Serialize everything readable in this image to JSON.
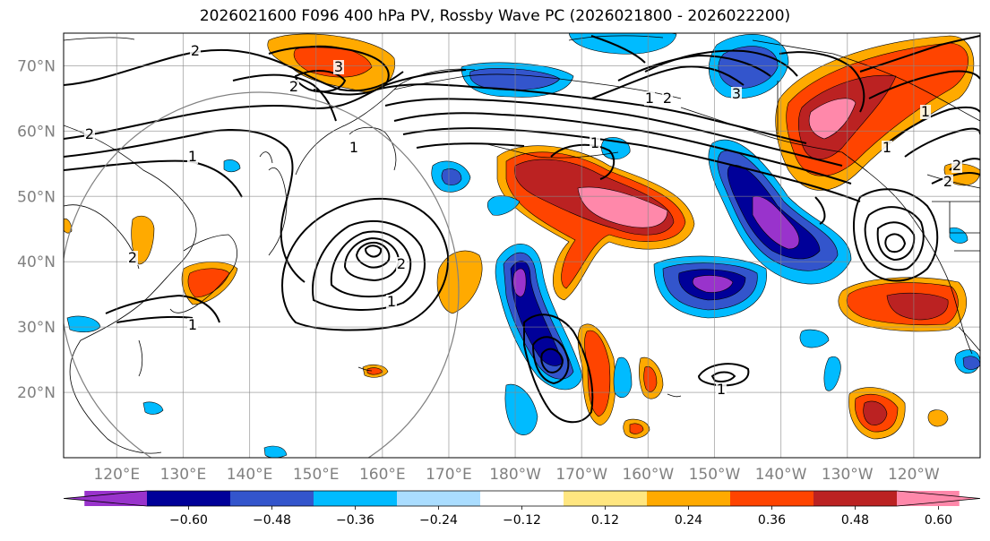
{
  "title": "2026021600 F096 400 hPa PV, Rossby Wave PC (2026021800 - 2026022200)",
  "map": {
    "lon_range": [
      112,
      250
    ],
    "lat_range": [
      10,
      75
    ],
    "lat_ticks": [
      {
        "value": 70,
        "label": "70°N"
      },
      {
        "value": 60,
        "label": "60°N"
      },
      {
        "value": 50,
        "label": "50°N"
      },
      {
        "value": 40,
        "label": "40°N"
      },
      {
        "value": 30,
        "label": "30°N"
      },
      {
        "value": 20,
        "label": "20°N"
      }
    ],
    "lon_ticks": [
      {
        "value": 120,
        "label": "120°E"
      },
      {
        "value": 130,
        "label": "130°E"
      },
      {
        "value": 140,
        "label": "140°E"
      },
      {
        "value": 150,
        "label": "150°E"
      },
      {
        "value": 160,
        "label": "160°E"
      },
      {
        "value": 170,
        "label": "170°E"
      },
      {
        "value": 180,
        "label": "180°W"
      },
      {
        "value": 190,
        "label": "170°W"
      },
      {
        "value": 200,
        "label": "160°W"
      },
      {
        "value": 210,
        "label": "150°W"
      },
      {
        "value": 220,
        "label": "140°W"
      },
      {
        "value": 230,
        "label": "130°W"
      },
      {
        "value": 240,
        "label": "120°W"
      }
    ],
    "grid": true,
    "contour_labels": [
      "2",
      "2",
      "3",
      "2",
      "1",
      "2",
      "1",
      "1",
      "2",
      "1",
      "1",
      "1",
      "2",
      "3",
      "1",
      "2",
      "2",
      "1",
      "1"
    ]
  },
  "colorbar": {
    "colors": [
      "#9933cc",
      "#000099",
      "#3355cc",
      "#00bbff",
      "#aaddff",
      "#ffffff",
      "#ffe680",
      "#ffaa00",
      "#ff4400",
      "#bb2222",
      "#ff88aa"
    ],
    "tick_labels": [
      "−0.60",
      "−0.48",
      "−0.36",
      "−0.24",
      "−0.12",
      "0.12",
      "0.24",
      "0.36",
      "0.48",
      "0.60"
    ],
    "extend": "both"
  }
}
